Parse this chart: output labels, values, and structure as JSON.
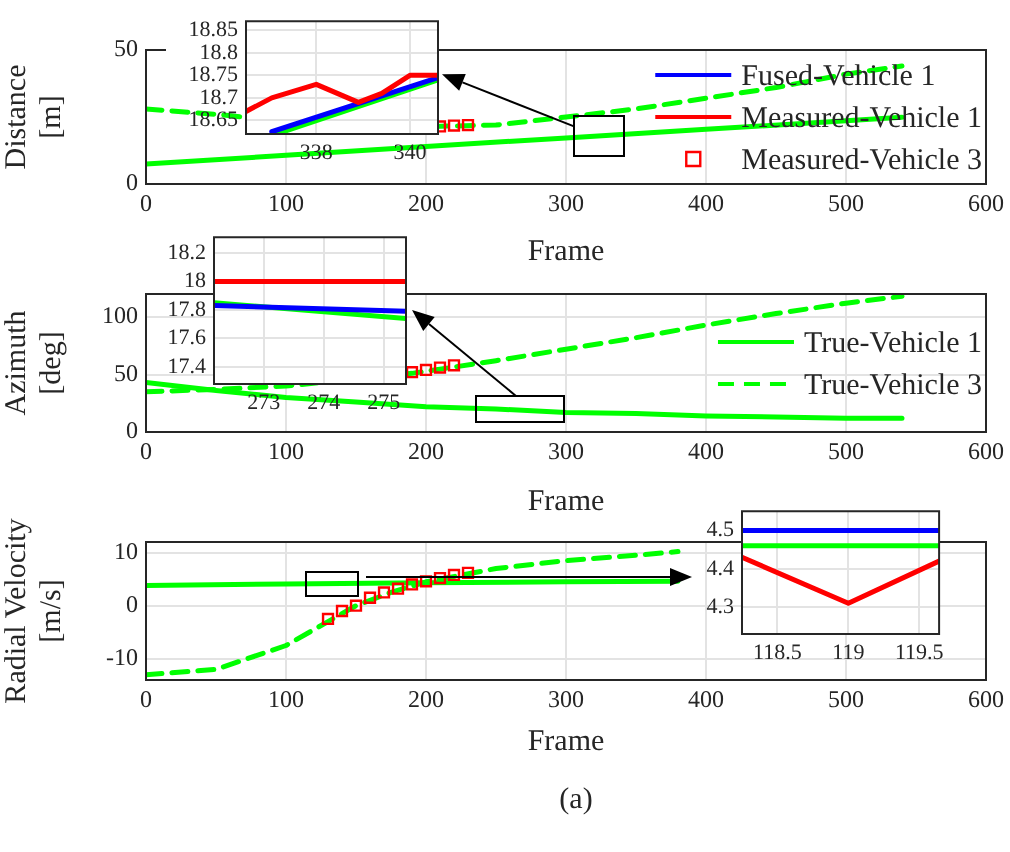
{
  "chart_data": [
    {
      "type": "line",
      "xlabel": "Frame",
      "ylabel": "Distance [m]",
      "xlim": [
        0,
        600
      ],
      "xticks": [
        0,
        100,
        200,
        300,
        400,
        500,
        600
      ],
      "ylim": [
        0,
        50
      ],
      "yticks": [
        0,
        50
      ],
      "grid": true,
      "legend": "right",
      "series": [
        {
          "name": "Fused-Vehicle 1",
          "color": "#0000ff"
        },
        {
          "name": "Measured-Vehicle 1",
          "color": "#ff0000"
        },
        {
          "name": "Measured-Vehicle 3",
          "type": "scatter",
          "marker": "square",
          "color": "#ff0000",
          "x": [
            210,
            220,
            230
          ],
          "values": [
            21.5,
            21.8,
            22
          ]
        },
        {
          "color": "#00ff00",
          "x": [
            0,
            100,
            200,
            300,
            400,
            500,
            540
          ],
          "values": [
            7.5,
            10.7,
            14,
            17.2,
            20.4,
            23.6,
            24.9
          ]
        },
        {
          "color": "#00ff00",
          "line_style": "dashed",
          "x": [
            0,
            50,
            69,
            206,
            250,
            300,
            350,
            400,
            450,
            500,
            540
          ],
          "values": [
            28,
            26,
            25,
            21.5,
            22,
            25,
            28,
            32,
            36,
            41,
            44
          ]
        }
      ]
    },
    {
      "type": "line",
      "xlim": [
        336.5,
        340.6
      ],
      "xticks": [
        338,
        340
      ],
      "ylim": [
        18.62,
        18.87
      ],
      "yticks": [
        18.65,
        18.7,
        18.75,
        18.8,
        18.85
      ],
      "grid": true,
      "series": [
        {
          "color": "#ff0000",
          "x": [
            336.5,
            337.05,
            338,
            338.9,
            339.4,
            340,
            340.6
          ],
          "values": [
            18.67,
            18.7,
            18.73,
            18.69,
            18.71,
            18.75,
            18.75
          ]
        },
        {
          "color": "#0000ff",
          "x": [
            337.05,
            340.6
          ],
          "values": [
            18.625,
            18.745
          ]
        },
        {
          "color": "#00ff00",
          "x": [
            337.15,
            340.6
          ],
          "values": [
            18.62,
            18.74
          ]
        }
      ]
    },
    {
      "type": "line",
      "xlabel": "Frame",
      "ylabel": "Azimuth [deg]",
      "xlim": [
        0,
        600
      ],
      "xticks": [
        0,
        100,
        200,
        300,
        400,
        500,
        600
      ],
      "ylim": [
        0,
        120
      ],
      "yticks": [
        0,
        50,
        100
      ],
      "grid": true,
      "legend": "right",
      "series": [
        {
          "name": "True-Vehicle 1",
          "color": "#00ff00",
          "x": [
            0,
            50,
            100,
            150,
            200,
            250,
            300,
            350,
            400,
            450,
            500,
            540
          ],
          "values": [
            43,
            36,
            30,
            26,
            22,
            20,
            17,
            16,
            14,
            13,
            12,
            12
          ]
        },
        {
          "name": "True-Vehicle 3",
          "color": "#00ff00",
          "line_style": "dashed",
          "x": [
            0,
            50,
            100,
            190,
            250,
            300,
            350,
            400,
            450,
            500,
            540
          ],
          "values": [
            35,
            37,
            40,
            51,
            62,
            72,
            82,
            93,
            103,
            112,
            118
          ]
        },
        {
          "type": "scatter",
          "marker": "square",
          "color": "#ff0000",
          "x": [
            190,
            200,
            210,
            220
          ],
          "values": [
            52,
            54,
            56,
            58
          ]
        }
      ]
    },
    {
      "type": "line",
      "xlim": [
        272.17,
        275.37
      ],
      "xticks": [
        273,
        274,
        275
      ],
      "ylim": [
        17.28,
        18.31
      ],
      "yticks": [
        17.4,
        17.6,
        17.8,
        18,
        18.2
      ],
      "grid": true,
      "series": [
        {
          "color": "#ff0000",
          "x": [
            272.17,
            275.37
          ],
          "values": [
            18,
            18
          ]
        },
        {
          "color": "#0000ff",
          "x": [
            272.17,
            275.37
          ],
          "values": [
            17.83,
            17.79
          ]
        },
        {
          "color": "#00ff00",
          "x": [
            272.17,
            275.37
          ],
          "values": [
            17.85,
            17.74
          ]
        }
      ]
    },
    {
      "type": "line",
      "xlabel": "Frame",
      "ylabel": "Radial Velocity [m/s]",
      "xlim": [
        0,
        600
      ],
      "xticks": [
        0,
        100,
        200,
        300,
        400,
        500,
        600
      ],
      "ylim": [
        -14,
        12
      ],
      "yticks": [
        -10,
        0,
        10
      ],
      "grid": true,
      "annotations": [
        "(a)"
      ],
      "series": [
        {
          "color": "#00ff00",
          "x": [
            0,
            100,
            200,
            300,
            380
          ],
          "values": [
            3.8,
            4.1,
            4.3,
            4.5,
            4.6
          ]
        },
        {
          "color": "#00ff00",
          "line_style": "dashed",
          "x": [
            0,
            50,
            100,
            130,
            150,
            175,
            200,
            250,
            300,
            350,
            380
          ],
          "values": [
            -13,
            -12,
            -7.5,
            -3,
            0,
            2.5,
            4.5,
            7,
            8.5,
            9.5,
            10.2
          ]
        },
        {
          "type": "scatter",
          "marker": "square",
          "color": "#ff0000",
          "x": [
            130,
            140,
            150,
            160,
            170,
            180,
            190,
            200,
            210,
            220,
            230
          ],
          "values": [
            -2.5,
            -1,
            0,
            1.5,
            2.5,
            3.2,
            4,
            4.6,
            5.2,
            5.8,
            6.2
          ]
        }
      ]
    },
    {
      "type": "line",
      "xlim": [
        118.25,
        119.64
      ],
      "xticks": [
        118.5,
        119,
        119.5
      ],
      "ylim": [
        4.23,
        4.55
      ],
      "yticks": [
        4.3,
        4.4,
        4.5
      ],
      "grid": true,
      "series": [
        {
          "color": "#0000ff",
          "x": [
            118.25,
            119.64
          ],
          "values": [
            4.5,
            4.5
          ]
        },
        {
          "color": "#00ff00",
          "x": [
            118.25,
            119.64
          ],
          "values": [
            4.46,
            4.46
          ]
        },
        {
          "color": "#ff0000",
          "x": [
            118.25,
            119,
            119.64
          ],
          "values": [
            4.43,
            4.31,
            4.42
          ]
        }
      ]
    }
  ]
}
